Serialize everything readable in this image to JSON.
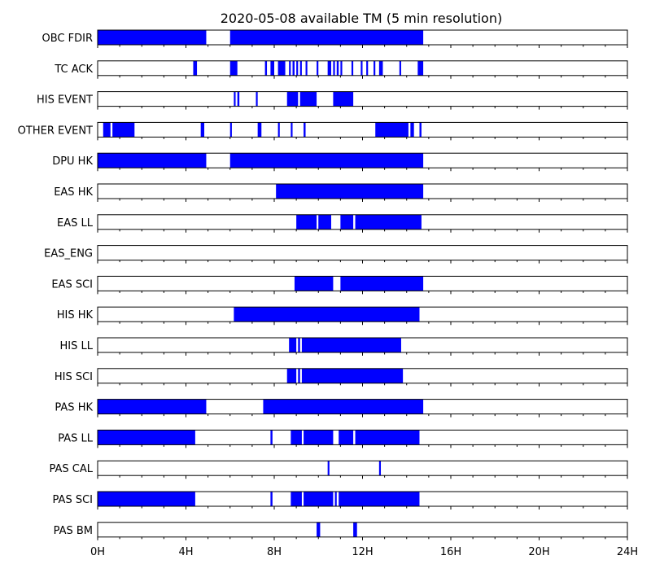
{
  "chart_data": {
    "type": "timeline",
    "title": "2020-05-08 available TM (5 min resolution)",
    "x_unit": "hours",
    "xlim": [
      0,
      24
    ],
    "x_ticks": [
      0,
      4,
      8,
      12,
      16,
      20,
      24
    ],
    "x_tick_labels": [
      "0H",
      "4H",
      "8H",
      "12H",
      "16H",
      "20H",
      "24H"
    ],
    "bar_color": "#0000ff",
    "series": [
      {
        "name": "OBC FDIR",
        "intervals": [
          [
            0,
            4.92
          ],
          [
            6.0,
            14.75
          ]
        ]
      },
      {
        "name": "TC ACK",
        "intervals": [
          [
            4.33,
            4.5
          ],
          [
            6.0,
            6.33
          ],
          [
            7.58,
            7.67
          ],
          [
            7.83,
            8.0
          ],
          [
            8.17,
            8.5
          ],
          [
            8.67,
            8.75
          ],
          [
            8.83,
            8.92
          ],
          [
            9.0,
            9.08
          ],
          [
            9.17,
            9.25
          ],
          [
            9.42,
            9.5
          ],
          [
            9.92,
            10.0
          ],
          [
            10.42,
            10.58
          ],
          [
            10.67,
            10.75
          ],
          [
            10.83,
            10.92
          ],
          [
            11.0,
            11.08
          ],
          [
            11.5,
            11.58
          ],
          [
            11.92,
            12.0
          ],
          [
            12.17,
            12.25
          ],
          [
            12.5,
            12.58
          ],
          [
            12.75,
            12.92
          ],
          [
            13.67,
            13.75
          ],
          [
            14.5,
            14.75
          ]
        ]
      },
      {
        "name": "HIS EVENT",
        "intervals": [
          [
            6.17,
            6.25
          ],
          [
            6.33,
            6.42
          ],
          [
            7.17,
            7.25
          ],
          [
            8.58,
            9.08
          ],
          [
            9.17,
            9.92
          ],
          [
            10.67,
            11.58
          ]
        ]
      },
      {
        "name": "OTHER EVENT",
        "intervals": [
          [
            0.25,
            0.58
          ],
          [
            0.67,
            1.67
          ],
          [
            4.67,
            4.83
          ],
          [
            6.0,
            6.08
          ],
          [
            7.25,
            7.42
          ],
          [
            8.17,
            8.25
          ],
          [
            8.75,
            8.83
          ],
          [
            9.33,
            9.42
          ],
          [
            12.58,
            14.08
          ],
          [
            14.17,
            14.33
          ],
          [
            14.58,
            14.67
          ]
        ]
      },
      {
        "name": "DPU HK",
        "intervals": [
          [
            0,
            4.92
          ],
          [
            6.0,
            14.75
          ]
        ]
      },
      {
        "name": "EAS HK",
        "intervals": [
          [
            8.08,
            14.75
          ]
        ]
      },
      {
        "name": "EAS LL",
        "intervals": [
          [
            9.0,
            9.92
          ],
          [
            10.0,
            10.58
          ],
          [
            11.0,
            11.58
          ],
          [
            11.67,
            14.67
          ]
        ]
      },
      {
        "name": "EAS_ENG",
        "intervals": []
      },
      {
        "name": "EAS SCI",
        "intervals": [
          [
            8.92,
            10.67
          ],
          [
            11.0,
            14.75
          ]
        ]
      },
      {
        "name": "HIS HK",
        "intervals": [
          [
            6.17,
            14.58
          ]
        ]
      },
      {
        "name": "HIS LL",
        "intervals": [
          [
            8.67,
            9.0
          ],
          [
            9.08,
            9.17
          ],
          [
            9.25,
            13.75
          ]
        ]
      },
      {
        "name": "HIS SCI",
        "intervals": [
          [
            8.58,
            9.0
          ],
          [
            9.08,
            9.17
          ],
          [
            9.25,
            13.83
          ]
        ]
      },
      {
        "name": "PAS HK",
        "intervals": [
          [
            0,
            4.92
          ],
          [
            7.5,
            14.75
          ]
        ]
      },
      {
        "name": "PAS LL",
        "intervals": [
          [
            0,
            4.42
          ],
          [
            7.83,
            7.92
          ],
          [
            8.75,
            9.25
          ],
          [
            9.33,
            10.67
          ],
          [
            10.92,
            11.58
          ],
          [
            11.67,
            14.58
          ]
        ]
      },
      {
        "name": "PAS CAL",
        "intervals": [
          [
            10.42,
            10.5
          ],
          [
            12.75,
            12.83
          ]
        ]
      },
      {
        "name": "PAS SCI",
        "intervals": [
          [
            0,
            4.42
          ],
          [
            7.83,
            7.92
          ],
          [
            8.75,
            9.25
          ],
          [
            9.33,
            10.67
          ],
          [
            10.75,
            10.83
          ],
          [
            10.92,
            14.58
          ]
        ]
      },
      {
        "name": "PAS BM",
        "intervals": [
          [
            9.92,
            10.08
          ],
          [
            11.58,
            11.75
          ]
        ]
      }
    ]
  }
}
